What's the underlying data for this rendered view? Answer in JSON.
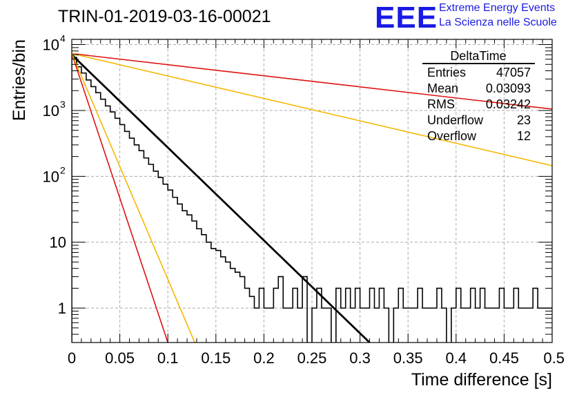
{
  "header": {
    "title": "TRIN-01-2019-03-16-00021",
    "logo_text": "EEE",
    "logo_line1": "Extreme Energy Events",
    "logo_line2": "La Scienza nelle Scuole",
    "logo_color": "#1a1ae6"
  },
  "stats_box": {
    "name": "DeltaTime",
    "rows": [
      {
        "label": "Entries",
        "value": "47057"
      },
      {
        "label": "Mean",
        "value": "0.03093"
      },
      {
        "label": "RMS",
        "value": "0.03242"
      },
      {
        "label": "Underflow",
        "value": "23"
      },
      {
        "label": "Overflow",
        "value": "12"
      }
    ]
  },
  "chart_data": {
    "type": "histogram",
    "title": "TRIN-01-2019-03-16-00021",
    "xlabel": "Time difference [s]",
    "ylabel": "Entries/bin",
    "xlim": [
      0,
      0.5
    ],
    "ylim": [
      0.3,
      12000
    ],
    "yscale": "log",
    "grid": true,
    "x_ticks": [
      0,
      0.05,
      0.1,
      0.15,
      0.2,
      0.25,
      0.3,
      0.35,
      0.4,
      0.45,
      0.5
    ],
    "x_tick_labels": [
      "0",
      "0.05",
      "0.1",
      "0.15",
      "0.2",
      "0.25",
      "0.3",
      "0.35",
      "0.4",
      "0.45",
      "0.5"
    ],
    "y_ticks": [
      1,
      10,
      100,
      1000,
      10000
    ],
    "y_tick_labels": [
      {
        "base": "1",
        "exp": ""
      },
      {
        "base": "10",
        "exp": ""
      },
      {
        "base": "10",
        "exp": "2"
      },
      {
        "base": "10",
        "exp": "3"
      },
      {
        "base": "10",
        "exp": "4"
      }
    ],
    "histogram": {
      "bin_width": 0.005,
      "color": "#000000",
      "values": [
        6400,
        4600,
        3700,
        2900,
        2300,
        1860,
        1480,
        1170,
        950,
        760,
        610,
        480,
        380,
        300,
        245,
        190,
        152,
        120,
        96,
        76,
        62,
        48,
        38,
        30,
        26,
        21,
        16,
        13,
        10,
        8,
        7.5,
        6,
        5,
        4,
        3.5,
        3,
        2,
        1.5,
        1,
        2,
        1,
        1,
        2,
        3,
        1,
        1,
        2,
        1,
        3,
        0.1,
        1,
        2,
        1,
        1,
        0.1,
        2,
        1,
        2,
        1,
        2,
        1,
        1,
        2,
        1,
        2,
        1,
        0.1,
        1,
        2,
        1,
        1,
        1,
        2,
        1,
        1,
        1,
        2,
        1,
        0.1,
        1,
        2,
        1,
        1,
        2,
        1,
        2,
        1,
        1,
        1,
        2,
        1,
        1,
        2,
        1,
        1,
        1,
        2,
        1,
        1,
        1
      ]
    },
    "fit_lines": [
      {
        "color": "#000000",
        "width": 2.8,
        "x": [
          0,
          0.31
        ],
        "y": [
          7000,
          0.3
        ]
      },
      {
        "color": "#dd1111",
        "width": 1.6,
        "x": [
          0,
          0.1
        ],
        "y": [
          7300,
          0.3
        ]
      },
      {
        "color": "#f5b800",
        "width": 1.6,
        "x": [
          0,
          0.128
        ],
        "y": [
          7300,
          0.3
        ]
      },
      {
        "color": "#dd1111",
        "width": 1.6,
        "x": [
          0,
          0.5
        ],
        "y": [
          7300,
          1050
        ]
      },
      {
        "color": "#f5b800",
        "width": 1.6,
        "x": [
          0,
          0.5
        ],
        "y": [
          7300,
          145
        ]
      }
    ]
  }
}
